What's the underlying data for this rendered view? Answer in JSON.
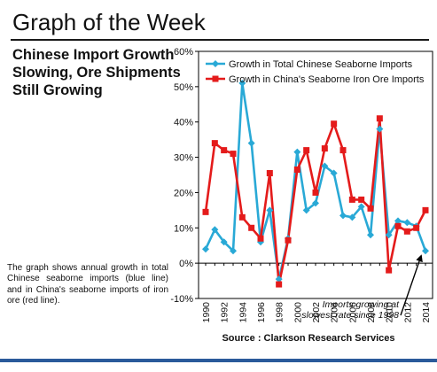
{
  "page": {
    "header": "Graph of the Week",
    "subtitle": "Chinese Import Growth Slowing, Ore Shipments Still Growing",
    "description": "The graph shows annual growth in total Chinese seaborne imports (blue line) and in China's seaborne imports of iron ore (red line).",
    "source": "Source : Clarkson Research Services"
  },
  "chart_data": {
    "type": "line",
    "x": [
      1990,
      1991,
      1992,
      1993,
      1994,
      1995,
      1996,
      1997,
      1998,
      1999,
      2000,
      2001,
      2002,
      2003,
      2004,
      2005,
      2006,
      2007,
      2008,
      2009,
      2010,
      2011,
      2012,
      2013,
      2014
    ],
    "x_ticks": [
      "1990",
      "1992",
      "1994",
      "1996",
      "1998",
      "2000",
      "2002",
      "2004",
      "2006",
      "2008",
      "2010",
      "2012",
      "2014"
    ],
    "y_ticks": [
      "-10%",
      "0%",
      "10%",
      "20%",
      "30%",
      "40%",
      "50%",
      "60%"
    ],
    "ylim": [
      -10,
      60
    ],
    "y_unit": "%",
    "grid": false,
    "legend_position": "top",
    "series": [
      {
        "name": "Growth in Total Chinese Seaborne Imports",
        "color": "#29a9d6",
        "marker": "diamond",
        "values": [
          4,
          9.5,
          6,
          3.5,
          51,
          34,
          6,
          15,
          -4.5,
          7,
          31.5,
          15,
          17,
          27.5,
          25.5,
          13.5,
          13,
          16,
          8,
          38,
          8,
          12,
          11.5,
          10.5,
          3.5
        ]
      },
      {
        "name": "Growth in China's Seaborne Iron Ore Imports",
        "color": "#e41b1b",
        "marker": "square",
        "values": [
          14.5,
          34,
          32,
          31,
          13,
          10,
          7,
          25.5,
          -6,
          6.5,
          26.5,
          32,
          20,
          32.5,
          39.5,
          32,
          18,
          18,
          15.5,
          41,
          -2,
          10.5,
          9,
          10,
          15
        ]
      }
    ],
    "annotation": {
      "text_lines": [
        "Imports growing at",
        "slowest rate since 1998"
      ],
      "points_to": {
        "x": 2014,
        "y": 3.5
      }
    }
  }
}
